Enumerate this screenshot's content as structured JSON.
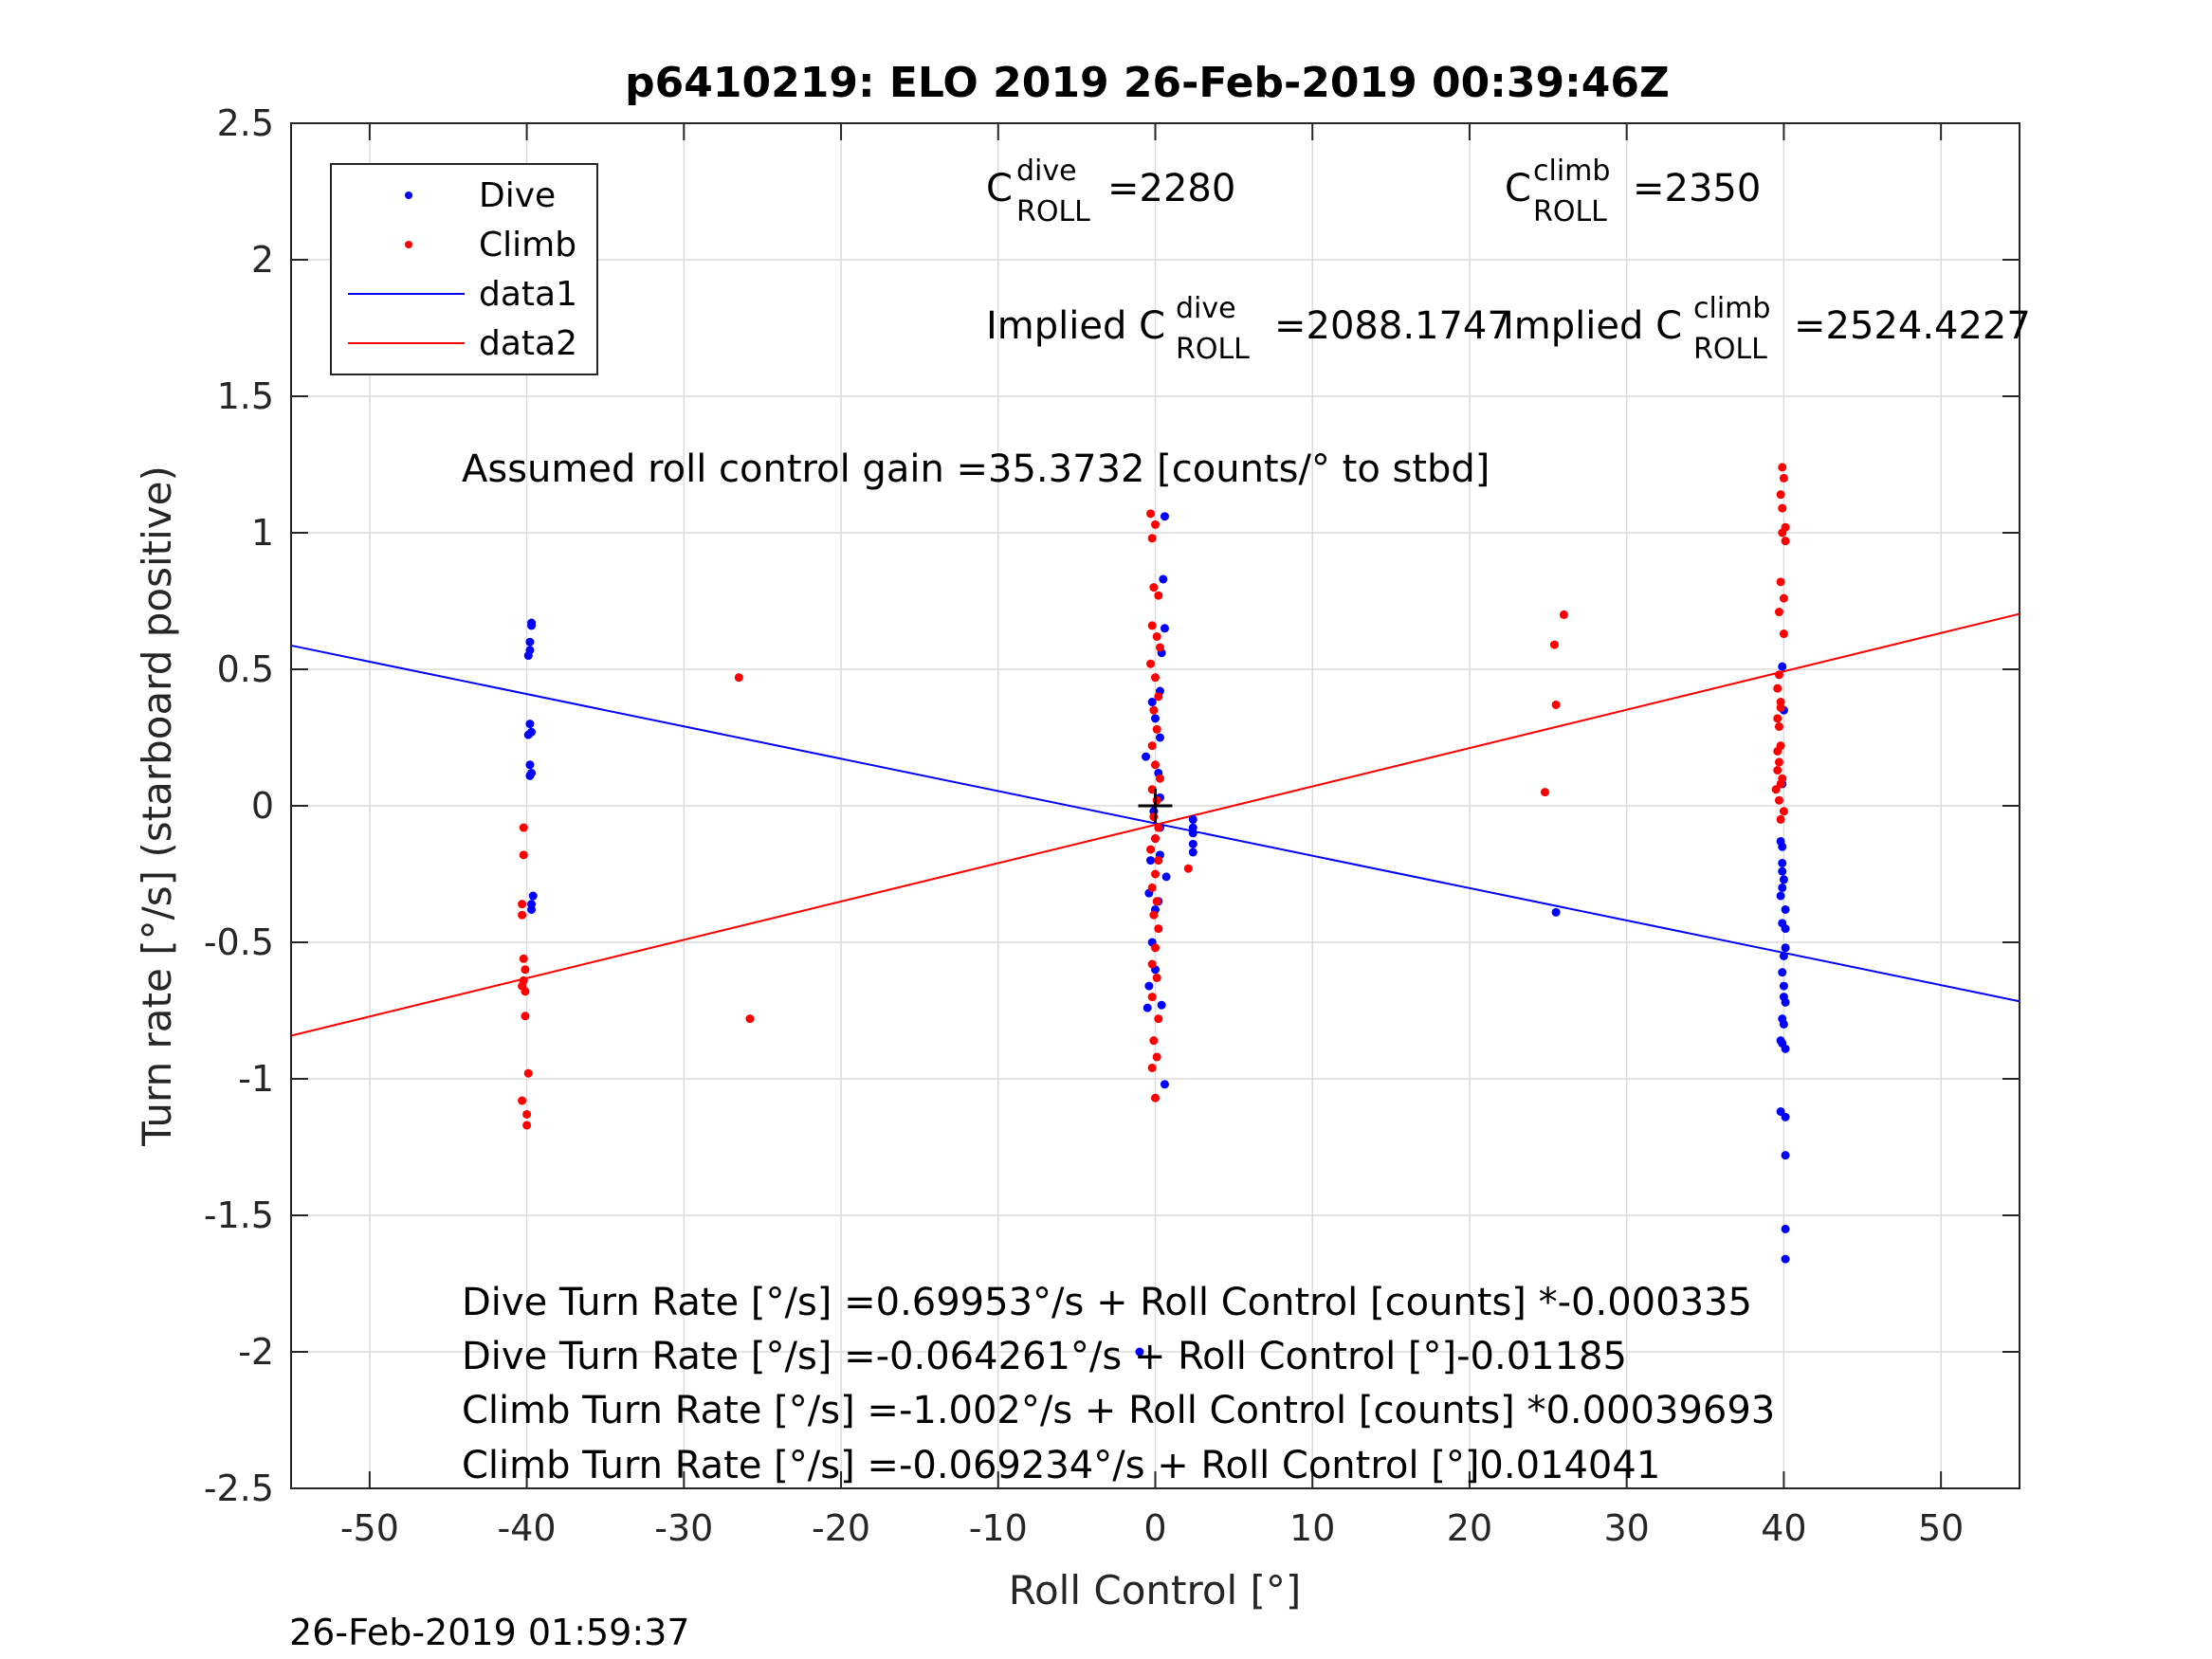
{
  "chart_data": {
    "type": "scatter",
    "title": "p6410219: ELO 2019 26-Feb-2019 00:39:46Z",
    "xlabel": "Roll Control [°]",
    "ylabel": "Turn rate [°/s] (starboard positive)",
    "xlim": [
      -55,
      55
    ],
    "ylim": [
      -2.5,
      2.5
    ],
    "xticks": [
      -50,
      -40,
      -30,
      -20,
      -10,
      0,
      10,
      20,
      30,
      40,
      50
    ],
    "yticks": [
      2.5,
      2,
      1.5,
      1,
      0.5,
      0,
      -0.5,
      -1,
      -1.5,
      -2,
      -2.5
    ],
    "xtick_labels": [
      "-50",
      "-40",
      "-30",
      "-20",
      "-10",
      "0",
      "10",
      "20",
      "30",
      "40",
      "50"
    ],
    "ytick_labels": [
      "2.5",
      "2",
      "1.5",
      "1",
      "0.5",
      "0",
      "-0.5",
      "-1",
      "-1.5",
      "-2",
      "-2.5"
    ],
    "grid": true,
    "legend_position": "top-left",
    "legend": [
      {
        "label": "Dive",
        "kind": "marker",
        "color": "#0000ff"
      },
      {
        "label": "Climb",
        "kind": "marker",
        "color": "#ff0000"
      },
      {
        "label": "data1",
        "kind": "line",
        "color": "#0000ff"
      },
      {
        "label": "data2",
        "kind": "line",
        "color": "#ff0000"
      }
    ],
    "series": [
      {
        "name": "Dive",
        "kind": "scatter",
        "color": "#0000ff",
        "points": [
          [
            -39.7,
            0.67
          ],
          [
            -39.7,
            0.66
          ],
          [
            -39.8,
            0.6
          ],
          [
            -39.8,
            0.57
          ],
          [
            -39.9,
            0.55
          ],
          [
            -39.8,
            0.3
          ],
          [
            -39.7,
            0.27
          ],
          [
            -39.9,
            0.26
          ],
          [
            -39.8,
            0.15
          ],
          [
            -39.7,
            0.12
          ],
          [
            -39.8,
            0.11
          ],
          [
            -39.6,
            -0.33
          ],
          [
            -39.7,
            -0.36
          ],
          [
            -39.7,
            -0.38
          ],
          [
            0.6,
            1.06
          ],
          [
            0.5,
            0.83
          ],
          [
            0.6,
            0.65
          ],
          [
            0.4,
            0.56
          ],
          [
            0.3,
            0.42
          ],
          [
            -0.2,
            0.38
          ],
          [
            0.0,
            0.32
          ],
          [
            0.3,
            0.25
          ],
          [
            -0.6,
            0.18
          ],
          [
            0.2,
            0.12
          ],
          [
            0.3,
            0.03
          ],
          [
            -0.1,
            -0.02
          ],
          [
            0.3,
            -0.08
          ],
          [
            0.0,
            -0.12
          ],
          [
            0.3,
            -0.18
          ],
          [
            -0.3,
            -0.2
          ],
          [
            0.7,
            -0.26
          ],
          [
            -0.4,
            -0.32
          ],
          [
            0.2,
            -0.35
          ],
          [
            0.0,
            -0.38
          ],
          [
            -0.2,
            -0.5
          ],
          [
            0.0,
            -0.6
          ],
          [
            -0.4,
            -0.66
          ],
          [
            -0.5,
            -0.74
          ],
          [
            0.4,
            -0.73
          ],
          [
            0.6,
            -1.02
          ],
          [
            2.4,
            -0.05
          ],
          [
            2.4,
            -0.08
          ],
          [
            2.4,
            -0.1
          ],
          [
            2.4,
            -0.14
          ],
          [
            2.4,
            -0.17
          ],
          [
            25.5,
            -0.39
          ],
          [
            39.9,
            0.51
          ],
          [
            40.0,
            0.35
          ],
          [
            39.9,
            0.08
          ],
          [
            39.8,
            -0.13
          ],
          [
            39.9,
            -0.15
          ],
          [
            39.9,
            -0.21
          ],
          [
            39.9,
            -0.24
          ],
          [
            40.0,
            -0.27
          ],
          [
            39.9,
            -0.3
          ],
          [
            39.8,
            -0.33
          ],
          [
            40.1,
            -0.38
          ],
          [
            39.9,
            -0.43
          ],
          [
            40.1,
            -0.45
          ],
          [
            40.1,
            -0.52
          ],
          [
            40.0,
            -0.55
          ],
          [
            39.9,
            -0.61
          ],
          [
            40.0,
            -0.66
          ],
          [
            40.0,
            -0.7
          ],
          [
            40.1,
            -0.72
          ],
          [
            39.9,
            -0.78
          ],
          [
            40.0,
            -0.8
          ],
          [
            39.8,
            -0.86
          ],
          [
            39.9,
            -0.87
          ],
          [
            40.1,
            -0.89
          ],
          [
            39.8,
            -1.12
          ],
          [
            40.1,
            -1.14
          ],
          [
            40.1,
            -1.28
          ],
          [
            40.1,
            -1.55
          ],
          [
            40.1,
            -1.66
          ],
          [
            -1.0,
            -2.0
          ]
        ]
      },
      {
        "name": "Climb",
        "kind": "scatter",
        "color": "#ff0000",
        "points": [
          [
            -40.2,
            -0.08
          ],
          [
            -40.2,
            -0.18
          ],
          [
            -40.3,
            -0.36
          ],
          [
            -40.3,
            -0.4
          ],
          [
            -40.2,
            -0.56
          ],
          [
            -40.1,
            -0.6
          ],
          [
            -40.2,
            -0.64
          ],
          [
            -40.3,
            -0.66
          ],
          [
            -40.1,
            -0.68
          ],
          [
            -40.1,
            -0.77
          ],
          [
            -39.9,
            -0.98
          ],
          [
            -40.3,
            -1.08
          ],
          [
            -40.0,
            -1.13
          ],
          [
            -40.0,
            -1.17
          ],
          [
            -26.5,
            0.47
          ],
          [
            -25.8,
            -0.78
          ],
          [
            -0.3,
            1.07
          ],
          [
            0.0,
            1.03
          ],
          [
            -0.2,
            0.98
          ],
          [
            -0.1,
            0.8
          ],
          [
            0.2,
            0.77
          ],
          [
            -0.2,
            0.66
          ],
          [
            0.1,
            0.62
          ],
          [
            0.3,
            0.58
          ],
          [
            -0.3,
            0.52
          ],
          [
            0.0,
            0.47
          ],
          [
            0.2,
            0.4
          ],
          [
            -0.1,
            0.35
          ],
          [
            0.1,
            0.28
          ],
          [
            -0.2,
            0.22
          ],
          [
            0.0,
            0.15
          ],
          [
            0.3,
            0.1
          ],
          [
            -0.2,
            0.06
          ],
          [
            0.1,
            0.02
          ],
          [
            -0.1,
            -0.04
          ],
          [
            0.2,
            -0.08
          ],
          [
            0.0,
            -0.12
          ],
          [
            -0.3,
            -0.16
          ],
          [
            0.2,
            -0.2
          ],
          [
            0.0,
            -0.25
          ],
          [
            -0.2,
            -0.3
          ],
          [
            0.1,
            -0.35
          ],
          [
            -0.1,
            -0.4
          ],
          [
            0.2,
            -0.45
          ],
          [
            0.0,
            -0.52
          ],
          [
            -0.2,
            -0.58
          ],
          [
            0.1,
            -0.63
          ],
          [
            -0.2,
            -0.7
          ],
          [
            0.2,
            -0.78
          ],
          [
            -0.1,
            -0.86
          ],
          [
            0.1,
            -0.92
          ],
          [
            -0.2,
            -0.96
          ],
          [
            0.0,
            -1.07
          ],
          [
            2.1,
            -0.23
          ],
          [
            24.8,
            0.05
          ],
          [
            25.5,
            0.37
          ],
          [
            25.4,
            0.59
          ],
          [
            26.0,
            0.7
          ],
          [
            39.9,
            1.24
          ],
          [
            40.0,
            1.2
          ],
          [
            39.8,
            1.14
          ],
          [
            39.9,
            1.09
          ],
          [
            40.1,
            1.02
          ],
          [
            39.9,
            1.0
          ],
          [
            40.1,
            0.97
          ],
          [
            39.8,
            0.82
          ],
          [
            40.0,
            0.76
          ],
          [
            39.7,
            0.71
          ],
          [
            40.0,
            0.63
          ],
          [
            39.7,
            0.48
          ],
          [
            39.6,
            0.43
          ],
          [
            39.8,
            0.38
          ],
          [
            39.8,
            0.36
          ],
          [
            39.6,
            0.32
          ],
          [
            39.7,
            0.29
          ],
          [
            39.8,
            0.22
          ],
          [
            39.6,
            0.2
          ],
          [
            39.7,
            0.16
          ],
          [
            39.6,
            0.13
          ],
          [
            39.9,
            0.1
          ],
          [
            39.8,
            0.08
          ],
          [
            39.5,
            0.06
          ],
          [
            39.7,
            0.02
          ],
          [
            40.0,
            -0.02
          ],
          [
            39.8,
            -0.05
          ]
        ]
      },
      {
        "name": "data1",
        "kind": "line",
        "color": "#0000ff",
        "points": [
          [
            -55,
            0.587
          ],
          [
            55,
            -0.716
          ]
        ]
      },
      {
        "name": "data2",
        "kind": "line",
        "color": "#ff0000",
        "points": [
          [
            -55,
            -0.842
          ],
          [
            55,
            0.703
          ]
        ]
      }
    ],
    "origin_marker": {
      "x": 0,
      "y": 0,
      "color": "#000000"
    },
    "annotations": {
      "c_roll_dive": {
        "base": "C",
        "sup": "dive",
        "sub": "ROLL",
        "value": "=2280"
      },
      "c_roll_climb": {
        "base": "C",
        "sup": "climb",
        "sub": "ROLL",
        "value": "=2350"
      },
      "implied_dive": {
        "prefix": "Implied C",
        "sup": "dive",
        "sub": "ROLL",
        "value": "=2088.1747"
      },
      "implied_climb": {
        "prefix": "Implied C",
        "sup": "climb",
        "sub": "ROLL",
        "value": "=2524.4227"
      },
      "gain": "Assumed roll control gain =35.3732 [counts/° to stbd]",
      "fit_lines": [
        "Dive Turn Rate [°/s] =0.69953°/s + Roll Control [counts] *-0.000335",
        "Dive Turn Rate [°/s] =-0.064261°/s + Roll Control [°]-0.01185",
        "Climb Turn Rate [°/s] =-1.002°/s + Roll Control [counts] *0.00039693",
        "Climb Turn Rate [°/s] =-0.069234°/s + Roll Control [°]0.014041"
      ]
    }
  },
  "footer": {
    "timestamp": "26-Feb-2019 01:59:37"
  }
}
